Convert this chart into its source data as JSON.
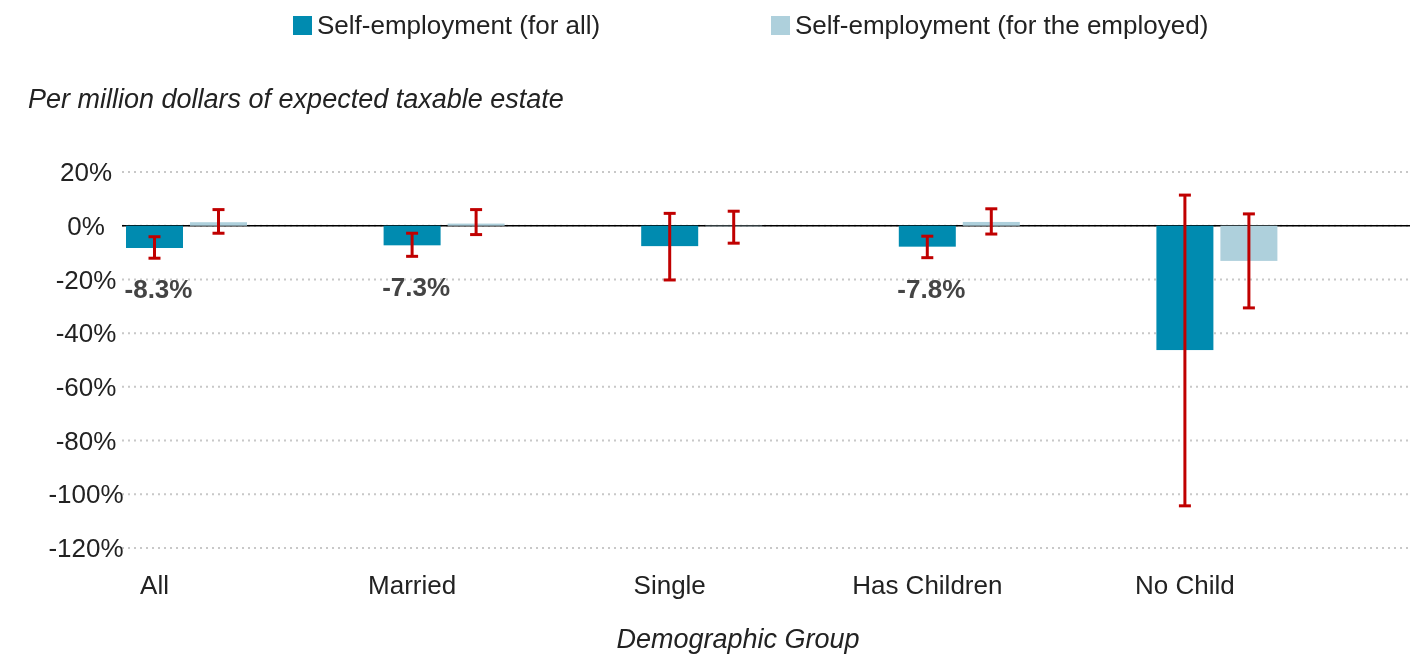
{
  "chart_data": {
    "type": "bar",
    "ylabel": "Per million dollars of expected taxable estate",
    "xlabel": "Demographic Group",
    "categories": [
      "All",
      "Married",
      "Single",
      "Has Children",
      "No Child"
    ],
    "series": [
      {
        "name": "Self-employment (for all)",
        "color": "#008bb0",
        "values": [
          -8.3,
          -7.3,
          -7.6,
          -7.8,
          -46.3
        ],
        "errors": [
          [
            -12.1,
            -4.1
          ],
          [
            -11.4,
            -2.8
          ],
          [
            -20.2,
            4.6
          ],
          [
            -11.9,
            -3.9
          ],
          [
            -104.3,
            11.4
          ]
        ],
        "value_labels": [
          "-8.3%",
          "-7.3%",
          null,
          "-7.8%",
          null
        ]
      },
      {
        "name": "Self-employment (for the employed)",
        "color": "#aed0dc",
        "values": [
          1.3,
          0.8,
          0,
          1.4,
          -13.1
        ],
        "errors": [
          [
            -2.8,
            6.0
          ],
          [
            -3.3,
            6.0
          ],
          [
            -6.5,
            5.4
          ],
          [
            -3.1,
            6.3
          ],
          [
            -30.6,
            4.4
          ]
        ]
      }
    ],
    "ylim": [
      -120,
      20
    ],
    "yticks": [
      {
        "value": -120,
        "label": "-120%"
      },
      {
        "value": -100,
        "label": "-100%"
      },
      {
        "value": -80,
        "label": "-80%"
      },
      {
        "value": -60,
        "label": "-60%"
      },
      {
        "value": -40,
        "label": "-40%"
      },
      {
        "value": -20,
        "label": "-20%"
      },
      {
        "value": 0,
        "label": "0%"
      },
      {
        "value": 20,
        "label": "20%"
      }
    ],
    "grid": "y",
    "legend": "top"
  }
}
